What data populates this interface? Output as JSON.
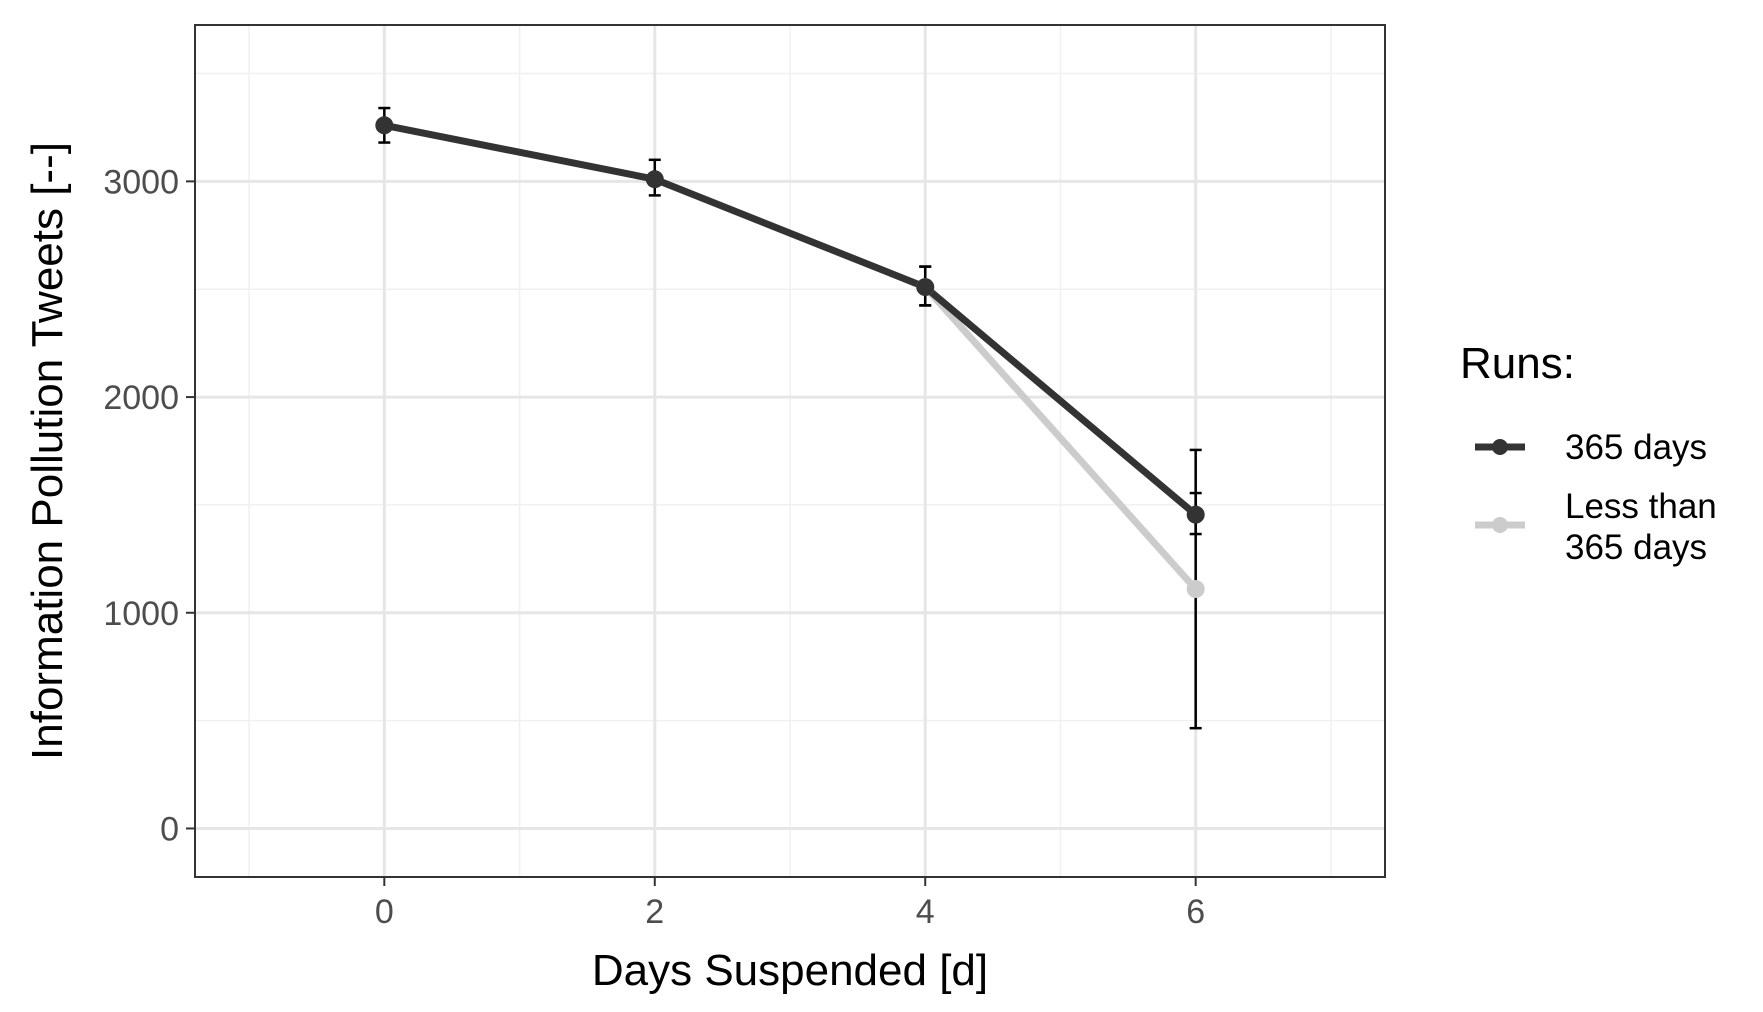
{
  "chart_data": {
    "type": "line",
    "xlabel": "Days Suspended [d]",
    "ylabel": "Information Pollution Tweets [--]",
    "xlim": [
      -1.4,
      7.4
    ],
    "ylim": [
      -225,
      3725
    ],
    "x_ticks": [
      0,
      2,
      4,
      6
    ],
    "y_ticks": [
      0,
      1000,
      2000,
      3000
    ],
    "x_minor_ticks": [
      -1,
      1,
      3,
      5,
      7
    ],
    "y_minor_ticks": [
      500,
      1500,
      2500,
      3500
    ],
    "grid": true,
    "legend": {
      "title": "Runs:",
      "position": "right",
      "entries": [
        {
          "label_lines": [
            "365 days"
          ]
        },
        {
          "label_lines": [
            "Less than",
            "365 days"
          ]
        }
      ]
    },
    "series": [
      {
        "name": "365 days",
        "color": "#333333",
        "x": [
          0,
          2,
          4,
          6
        ],
        "y": [
          3260,
          3010,
          2510,
          1455
        ],
        "err_low": [
          3180,
          2935,
          2425,
          1365
        ],
        "err_high": [
          3340,
          3100,
          2605,
          1555
        ]
      },
      {
        "name": "Less than 365 days",
        "color": "#cccccc",
        "x": [
          4,
          6
        ],
        "y": [
          2510,
          1110
        ],
        "err_low": [
          2425,
          465
        ],
        "err_high": [
          2605,
          1755
        ]
      }
    ]
  }
}
